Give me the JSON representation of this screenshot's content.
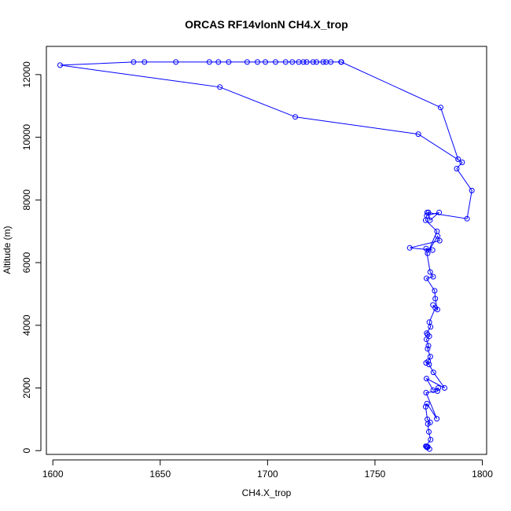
{
  "chart_data": {
    "type": "line",
    "title": "ORCAS RF14vlonN CH4.X_trop",
    "xlabel": "CH4.X_trop",
    "ylabel": "Altitude (m)",
    "xlim": [
      1597.0,
      1802.0
    ],
    "ylim": [
      -120,
      12900
    ],
    "x_ticks": [
      1600,
      1650,
      1700,
      1750,
      1800
    ],
    "y_ticks": [
      0,
      2000,
      4000,
      6000,
      8000,
      10000,
      12000
    ],
    "grid": false,
    "legend": "none",
    "color": "#0000ff",
    "series": [
      {
        "x": [
          1775.4,
          1774.6,
          1774.0,
          1774.3,
          1773.7,
          1775.9,
          1775.1,
          1774.6,
          1775.7,
          1774.4,
          1773.6,
          1774.2,
          1778.8,
          1773.8,
          1779.1,
          1779.5,
          1777.1,
          1774.0,
          1782.4,
          1777.2,
          1775.2,
          1773.8,
          1774.8,
          1775.8,
          1774.5,
          1774.9,
          1774.0,
          1775.3,
          1774.5,
          1774.1,
          1775.9,
          1775.3,
          1778.1,
          1777.0,
          1779.1,
          1778.1,
          1777.8,
          1774.0,
          1777.1,
          1775.7,
          1773.8,
          1776.8,
          1766.2,
          1780.1,
          1779.2,
          1774.5,
          1778.9,
          1773.6,
          1774.1,
          1779.9,
          1775.6,
          1774.9,
          1774.3,
          1792.9,
          1795.1,
          1788.1,
          1790.6,
          1770.2,
          1712.9,
          1677.8,
          1603.4,
          1637.6,
          1642.7,
          1657.3,
          1672.9,
          1677.1,
          1681.9,
          1690.5,
          1695.3,
          1699.0,
          1703.7,
          1708.4,
          1711.5,
          1714.5,
          1716.7,
          1718.2,
          1721.2,
          1722.8,
          1725.9,
          1727.2,
          1729.4,
          1734.2,
          1734.4,
          1780.6,
          1788.7
        ],
        "y": [
          50,
          120,
          130,
          100,
          140,
          350,
          600,
          850,
          900,
          1000,
          1400,
          1500,
          1020,
          1850,
          1900,
          2000,
          1930,
          2300,
          2000,
          2500,
          2750,
          2800,
          2850,
          3000,
          3250,
          3350,
          3550,
          3650,
          3700,
          3750,
          3950,
          4100,
          4550,
          4650,
          4500,
          4850,
          5100,
          5500,
          5550,
          5700,
          6450,
          6400,
          6470,
          6700,
          6850,
          6300,
          7000,
          7350,
          7500,
          7600,
          7350,
          7600,
          7600,
          7400,
          8300,
          9000,
          9200,
          10100,
          10650,
          11600,
          12300,
          12400,
          12400,
          12400,
          12400,
          12400,
          12400,
          12400,
          12400,
          12400,
          12400,
          12400,
          12400,
          12400,
          12400,
          12400,
          12400,
          12400,
          12400,
          12400,
          12400,
          12400,
          12400,
          10950,
          9300
        ]
      }
    ]
  }
}
